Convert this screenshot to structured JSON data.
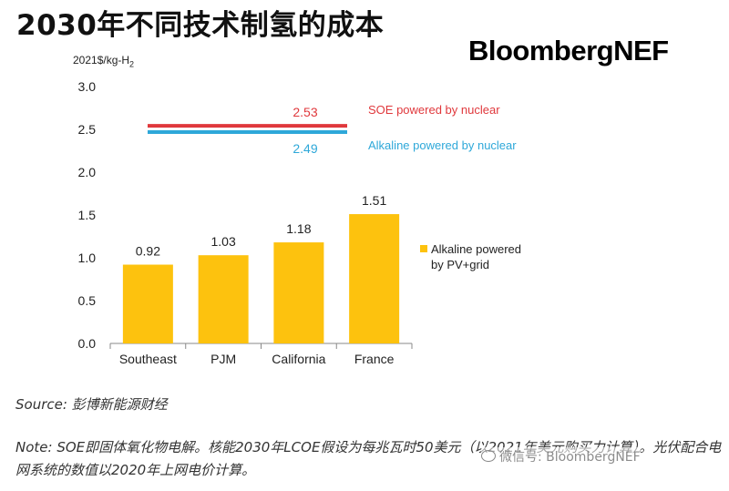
{
  "header": {
    "title": "2030年不同技术制氢的成本",
    "brand": "BloombergNEF"
  },
  "chart_data": {
    "type": "bar",
    "ylabel": "2021$/kg-H",
    "ylabel_sub": "2",
    "ylim": [
      0,
      3.0
    ],
    "yticks": [
      "3.0",
      "2.5",
      "2.0",
      "1.5",
      "1.0",
      "0.5",
      "0.0"
    ],
    "categories": [
      "Southeast",
      "PJM",
      "California",
      "France"
    ],
    "series": [
      {
        "name": "Alkaline powered by PV+grid",
        "values": [
          0.92,
          1.03,
          1.18,
          1.51
        ],
        "labels": [
          "0.92",
          "1.03",
          "1.18",
          "1.51"
        ],
        "color": "#FDC20E"
      }
    ],
    "reference_lines": [
      {
        "name": "SOE powered by nuclear",
        "value": 2.53,
        "label": "2.53",
        "color": "#E0383C"
      },
      {
        "name": "Alkaline powered by nuclear",
        "value": 2.49,
        "label": "2.49",
        "color": "#2EA8D9"
      }
    ],
    "legend_lines": [
      "Alkaline powered",
      "by PV+grid"
    ],
    "grid": false
  },
  "footer": {
    "source": "Source: 彭博新能源财经",
    "note": "Note: SOE即固体氧化物电解。核能2030年LCOE假设为每兆瓦时50美元（以2021年美元购买力计算）。光伏配合电网系统的数值以2020年上网电价计算。"
  },
  "watermark": {
    "text": "微信号: BloombergNEF"
  }
}
